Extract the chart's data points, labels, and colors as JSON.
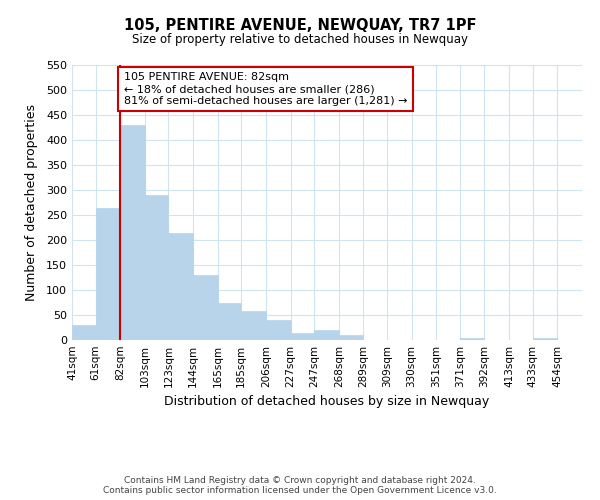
{
  "title": "105, PENTIRE AVENUE, NEWQUAY, TR7 1PF",
  "subtitle": "Size of property relative to detached houses in Newquay",
  "xlabel": "Distribution of detached houses by size in Newquay",
  "ylabel": "Number of detached properties",
  "bar_left_edges": [
    41,
    61,
    82,
    103,
    123,
    144,
    165,
    185,
    206,
    227,
    247,
    268,
    289,
    309,
    330,
    351,
    371,
    392,
    413,
    433
  ],
  "bar_heights": [
    30,
    265,
    430,
    290,
    215,
    130,
    75,
    58,
    40,
    15,
    20,
    10,
    0,
    0,
    0,
    0,
    5,
    0,
    0,
    5
  ],
  "bar_widths": [
    20,
    21,
    21,
    20,
    21,
    21,
    20,
    21,
    21,
    20,
    21,
    21,
    20,
    21,
    21,
    20,
    21,
    21,
    20,
    21
  ],
  "bar_color": "#b8d4ea",
  "bar_edge_color": "#b8d4ea",
  "grid_color": "#d0e4f0",
  "marker_x": 82,
  "marker_color": "#cc0000",
  "ylim": [
    0,
    550
  ],
  "yticks": [
    0,
    50,
    100,
    150,
    200,
    250,
    300,
    350,
    400,
    450,
    500,
    550
  ],
  "xtick_labels": [
    "41sqm",
    "61sqm",
    "82sqm",
    "103sqm",
    "123sqm",
    "144sqm",
    "165sqm",
    "185sqm",
    "206sqm",
    "227sqm",
    "247sqm",
    "268sqm",
    "289sqm",
    "309sqm",
    "330sqm",
    "351sqm",
    "371sqm",
    "392sqm",
    "413sqm",
    "433sqm",
    "454sqm"
  ],
  "xtick_positions": [
    41,
    61,
    82,
    103,
    123,
    144,
    165,
    185,
    206,
    227,
    247,
    268,
    289,
    309,
    330,
    351,
    371,
    392,
    413,
    433,
    454
  ],
  "annotation_title": "105 PENTIRE AVENUE: 82sqm",
  "annotation_line1": "← 18% of detached houses are smaller (286)",
  "annotation_line2": "81% of semi-detached houses are larger (1,281) →",
  "annotation_box_color": "#ffffff",
  "annotation_box_edge": "#cc0000",
  "footnote1": "Contains HM Land Registry data © Crown copyright and database right 2024.",
  "footnote2": "Contains public sector information licensed under the Open Government Licence v3.0.",
  "bg_color": "#ffffff",
  "xlim_left": 41,
  "xlim_right": 475
}
